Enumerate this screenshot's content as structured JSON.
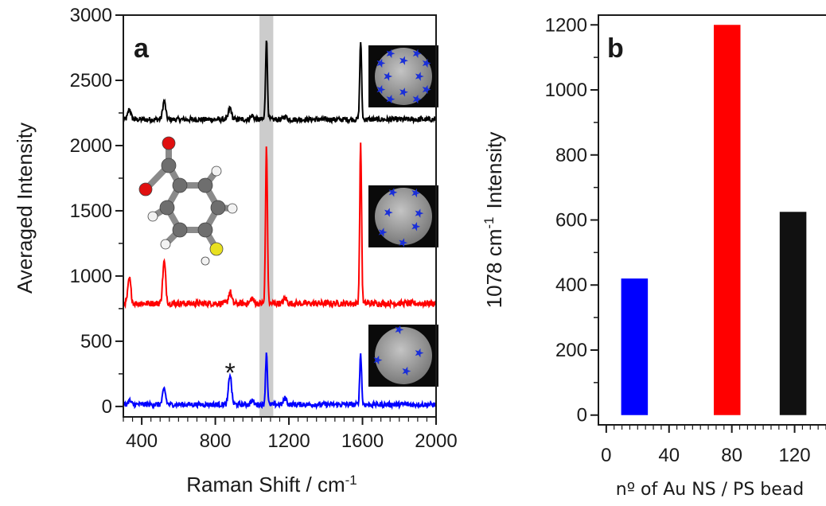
{
  "chart_data": [
    {
      "panel": "a",
      "type": "line",
      "xlabel": "Raman Shift / cm",
      "xlabel_superscript": "-1",
      "ylabel": "Averaged Intensity",
      "xlim": [
        300,
        2000
      ],
      "ylim": [
        -80,
        3000
      ],
      "xticks": [
        400,
        800,
        1200,
        1600,
        2000
      ],
      "yticks": [
        0,
        500,
        1000,
        1500,
        2000,
        2500,
        3000
      ],
      "highlight_band": [
        1040,
        1115
      ],
      "annotation": "*",
      "annotation_x": 880,
      "series": [
        {
          "color": "#000000",
          "baseline": 2200,
          "noise": 25,
          "peaks": [
            [
              333,
              80
            ],
            [
              522,
              140
            ],
            [
              880,
              90
            ],
            [
              1000,
              30
            ],
            [
              1078,
              620
            ],
            [
              1180,
              25
            ],
            [
              1590,
              600
            ]
          ]
        },
        {
          "color": "#ff0000",
          "baseline": 790,
          "noise": 30,
          "peaks": [
            [
              333,
              190
            ],
            [
              522,
              320
            ],
            [
              880,
              90
            ],
            [
              1000,
              40
            ],
            [
              1078,
              1210
            ],
            [
              1180,
              40
            ],
            [
              1590,
              1210
            ]
          ]
        },
        {
          "color": "#0000ff",
          "baseline": 15,
          "noise": 25,
          "peaks": [
            [
              333,
              30
            ],
            [
              522,
              120
            ],
            [
              880,
              230
            ],
            [
              1000,
              30
            ],
            [
              1078,
              400
            ],
            [
              1180,
              50
            ],
            [
              1590,
              390
            ]
          ]
        }
      ]
    },
    {
      "panel": "b",
      "type": "bar",
      "xlabel": "nº of Au NS / PS bead",
      "ylabel": "1078 cm",
      "ylabel_superscript": "-1",
      "ylabel_suffix": "Intensity",
      "xlim": [
        -5,
        140
      ],
      "ylim": [
        -30,
        1230
      ],
      "xticks": [
        0,
        40,
        80,
        120
      ],
      "yticks": [
        0,
        200,
        400,
        600,
        800,
        1000,
        1200
      ],
      "x": [
        18,
        77,
        119
      ],
      "values": [
        420,
        1200,
        625
      ],
      "bar_width": 17,
      "colors": [
        "#0000ff",
        "#ff0000",
        "#111111"
      ]
    }
  ],
  "colors": {
    "band": "#cccccc",
    "inset_bg": "#0a0a0a",
    "bead": "#9a9a9a",
    "nanostar": "#1a2fd8",
    "carbon": "#6e6e6e",
    "oxygen": "#e01010",
    "sulfur": "#e8e020",
    "hydrogen": "#f2f2f2"
  },
  "insets": [
    {
      "label": "bead-many-nanostars",
      "stars": 12
    },
    {
      "label": "bead-medium-nanostars",
      "stars": 7
    },
    {
      "label": "bead-few-nanostars",
      "stars": 4
    }
  ]
}
